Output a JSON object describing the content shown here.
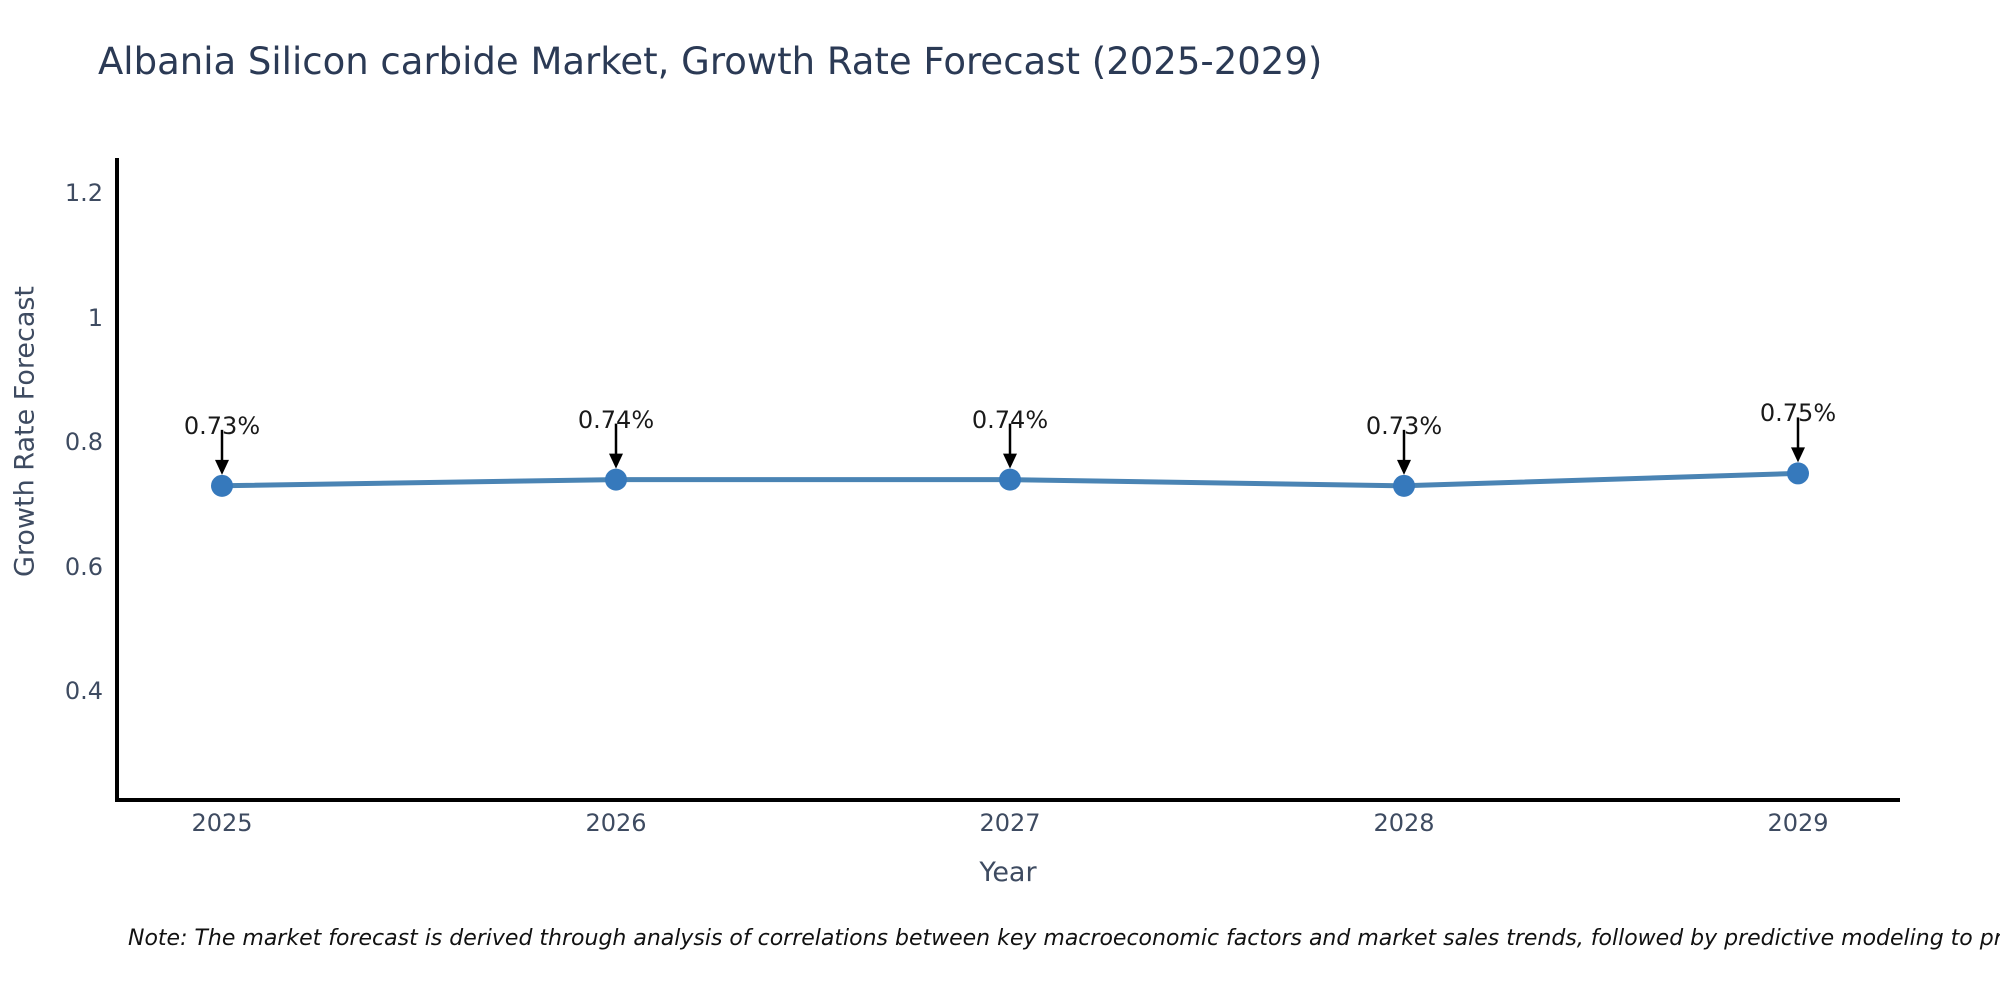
{
  "chart_data": {
    "type": "line",
    "title": "Albania Silicon carbide Market, Growth Rate Forecast (2025-2029)",
    "xlabel": "Year",
    "ylabel": "Growth Rate Forecast",
    "categories": [
      2025,
      2026,
      2027,
      2028,
      2029
    ],
    "values": [
      0.73,
      0.74,
      0.74,
      0.73,
      0.75
    ],
    "point_labels": [
      "0.73%",
      "0.74%",
      "0.74%",
      "0.73%",
      "0.75%"
    ],
    "yticks": [
      0.4,
      0.6,
      0.8,
      1,
      1.2
    ],
    "ytick_labels": [
      "0.4",
      "0.6",
      "0.8",
      "1",
      "1.2"
    ],
    "ylim": [
      0.225,
      1.257
    ],
    "grid": false,
    "legend": "none",
    "colors": {
      "line": "#4a84b4",
      "marker": "#3679bc",
      "axis": "#000000",
      "arrow": "#000000",
      "title_text": "#2b3a55",
      "tick_text": "#3e4b61",
      "annotation_text": "#1a1a1a",
      "note_text": "#111111",
      "background": "#ffffff"
    }
  },
  "footnote": "Note: The market forecast is derived through analysis of correlations between key macroeconomic factors and market sales trends, followed by predictive modeling to project future sales"
}
